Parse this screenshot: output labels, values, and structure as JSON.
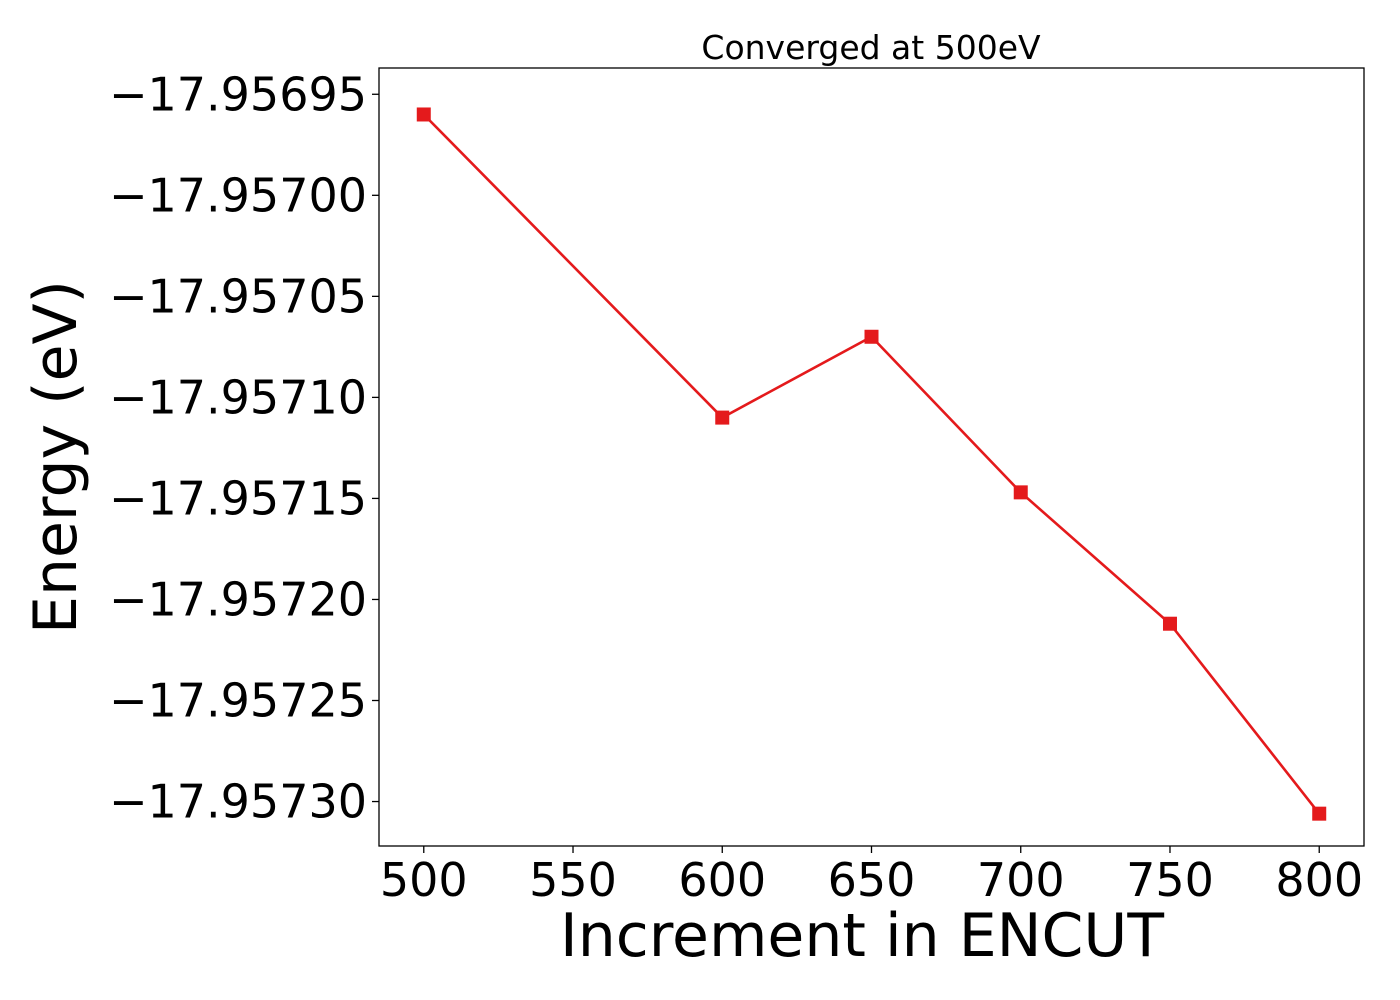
{
  "chart_data": {
    "type": "line",
    "title": "Converged at 500eV",
    "xlabel": "Increment in ENCUT",
    "ylabel": "Energy (eV)",
    "x": [
      500,
      600,
      650,
      700,
      750,
      800
    ],
    "series": [
      {
        "values": [
          -17.95696,
          -17.95711,
          -17.95707,
          -17.957147,
          -17.957212,
          -17.957306
        ],
        "color": "#e41a1c",
        "marker": "square"
      }
    ],
    "xlim": [
      485,
      815
    ],
    "ylim": [
      -17.957322,
      -17.956937
    ],
    "x_ticks": [
      500,
      550,
      600,
      650,
      700,
      750,
      800
    ],
    "x_tick_labels": [
      "500",
      "550",
      "600",
      "650",
      "700",
      "750",
      "800"
    ],
    "y_ticks": [
      -17.95695,
      -17.957,
      -17.95705,
      -17.9571,
      -17.95715,
      -17.9572,
      -17.95725,
      -17.9573
    ],
    "y_tick_labels": [
      "−17.95695",
      "−17.95700",
      "−17.95705",
      "−17.95710",
      "−17.95715",
      "−17.95720",
      "−17.95725",
      "−17.95730"
    ],
    "grid": false,
    "legend": "none"
  }
}
